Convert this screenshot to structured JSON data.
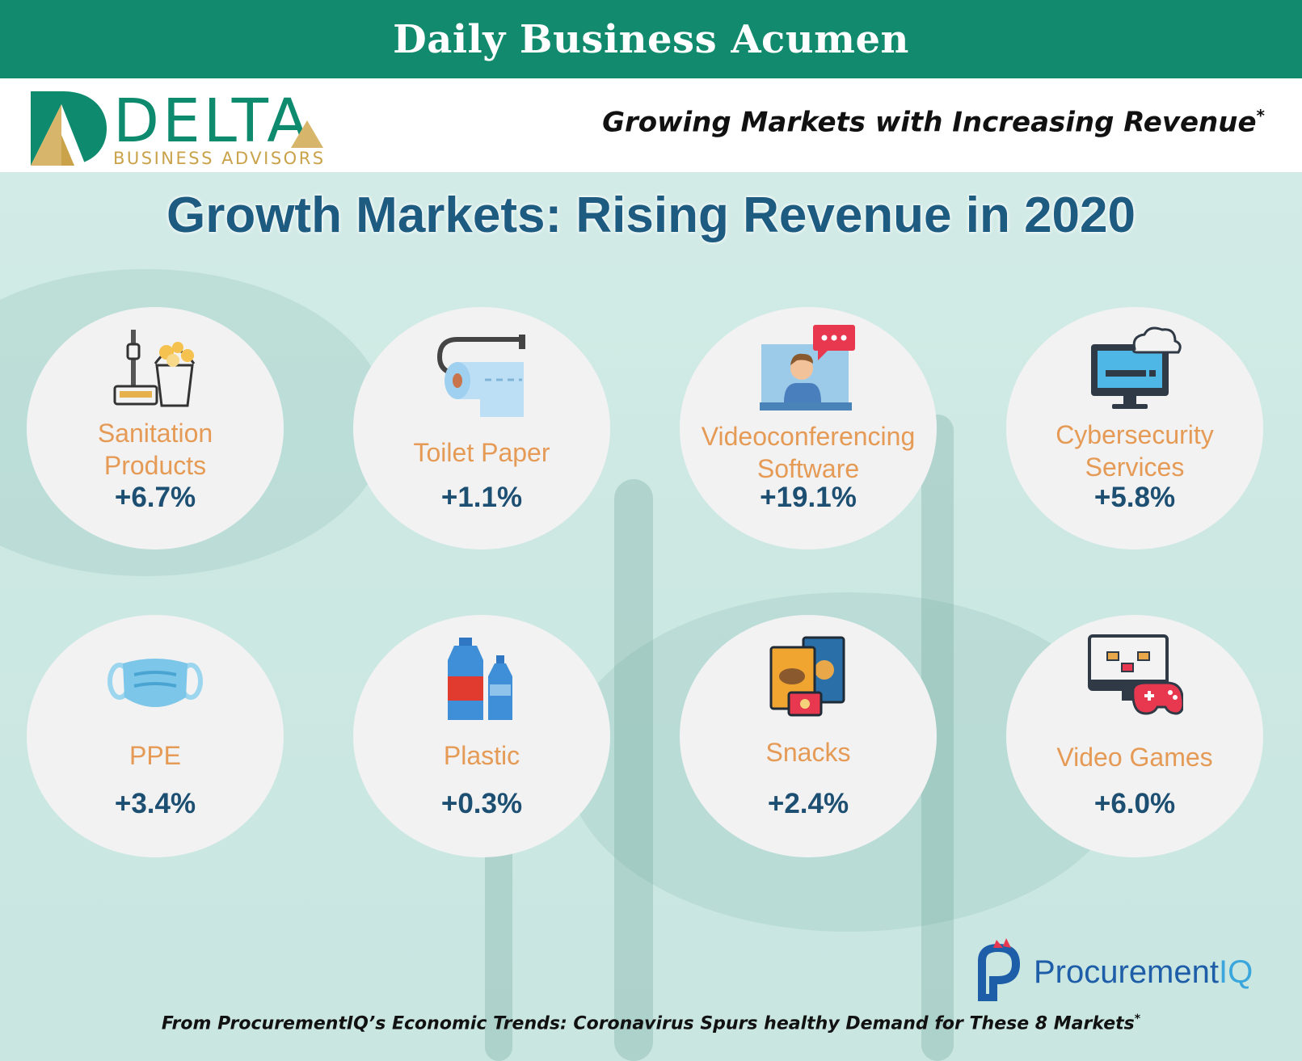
{
  "header": {
    "title": "Daily Business Acumen"
  },
  "brand": {
    "logo_name": "DELTA",
    "logo_sub": "BUSINESS ADVISORS",
    "tagline": "Growing Markets with Increasing Revenue",
    "tagline_mark": "*"
  },
  "main": {
    "title": "Growth Markets: Rising Revenue in 2020",
    "markets": [
      {
        "label_lines": [
          "Sanitation",
          "Products"
        ],
        "value": "+6.7%",
        "icon": "mop-bucket-icon"
      },
      {
        "label_lines": [
          "Toilet Paper"
        ],
        "value": "+1.1%",
        "icon": "toilet-paper-icon"
      },
      {
        "label_lines": [
          "Videoconferencing",
          "Software"
        ],
        "value": "+19.1%",
        "icon": "video-call-icon"
      },
      {
        "label_lines": [
          "Cybersecurity",
          "Services"
        ],
        "value": "+5.8%",
        "icon": "cloud-monitor-icon"
      },
      {
        "label_lines": [
          "PPE"
        ],
        "value": "+3.4%",
        "icon": "face-mask-icon"
      },
      {
        "label_lines": [
          "Plastic"
        ],
        "value": "+0.3%",
        "icon": "plastic-bottles-icon"
      },
      {
        "label_lines": [
          "Snacks"
        ],
        "value": "+2.4%",
        "icon": "snack-bags-icon"
      },
      {
        "label_lines": [
          "Video Games"
        ],
        "value": "+6.0%",
        "icon": "gamepad-monitor-icon"
      }
    ]
  },
  "procurement": {
    "name_main": "Procurement",
    "name_iq": "IQ"
  },
  "footer": {
    "text": "From ProcurementIQ’s Economic Trends: Coronavirus Spurs healthy Demand for These 8 Markets",
    "mark": "*"
  },
  "colors": {
    "header_bg": "#128a6d",
    "title_blue": "#1d5b80",
    "label_orange": "#e59a55",
    "value_blue": "#1d4f72",
    "delta_green": "#0e8a6e",
    "delta_gold": "#c9a24a"
  }
}
